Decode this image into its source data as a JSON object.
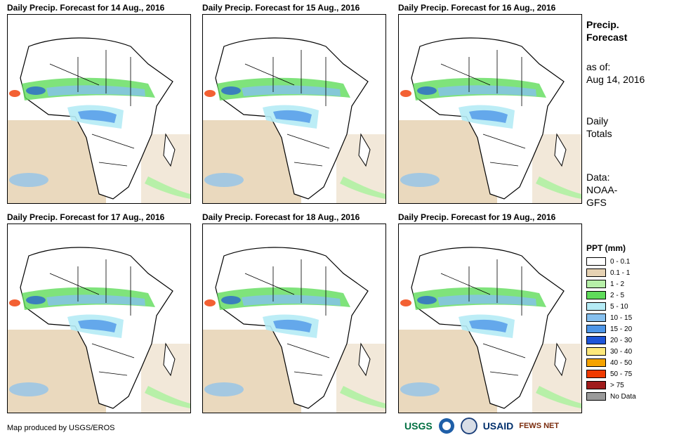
{
  "panels": [
    {
      "title": "Daily Precip. Forecast for 14 Aug., 2016"
    },
    {
      "title": "Daily Precip. Forecast for 15 Aug., 2016"
    },
    {
      "title": "Daily Precip. Forecast for 16 Aug., 2016"
    },
    {
      "title": "Daily Precip. Forecast for 17 Aug., 2016"
    },
    {
      "title": "Daily Precip. Forecast for 18 Aug., 2016"
    },
    {
      "title": "Daily Precip. Forecast for 19 Aug., 2016"
    }
  ],
  "sidebar": {
    "title_line1": "Precip.",
    "title_line2": "Forecast",
    "asof_label": "as of:",
    "asof_date": "Aug 14, 2016",
    "totals_line1": "Daily",
    "totals_line2": "Totals",
    "data_line1": "Data:",
    "data_line2": "NOAA-",
    "data_line3": "GFS"
  },
  "legend": {
    "title": "PPT (mm)",
    "items": [
      {
        "label": "0 - 0.1",
        "color": "#ffffff"
      },
      {
        "label": "0.1 - 1",
        "color": "#e6d2b3"
      },
      {
        "label": "1 - 2",
        "color": "#b7f0a8"
      },
      {
        "label": "2 - 5",
        "color": "#5fdc5a"
      },
      {
        "label": "5 - 10",
        "color": "#b5ebf5"
      },
      {
        "label": "10 - 15",
        "color": "#86c0ef"
      },
      {
        "label": "15 - 20",
        "color": "#4d96e8"
      },
      {
        "label": "20 - 30",
        "color": "#1e55d8"
      },
      {
        "label": "30 - 40",
        "color": "#fde87b"
      },
      {
        "label": "40 - 50",
        "color": "#f5a300"
      },
      {
        "label": "50 - 75",
        "color": "#f03a00"
      },
      {
        "label": "> 75",
        "color": "#a01c1c"
      },
      {
        "label": "No Data",
        "color": "#9a9a9a"
      }
    ]
  },
  "credit": "Map produced by USGS/EROS",
  "logos": {
    "usgs": "USGS",
    "usaid": "USAID",
    "fews": "FEWS NET"
  }
}
